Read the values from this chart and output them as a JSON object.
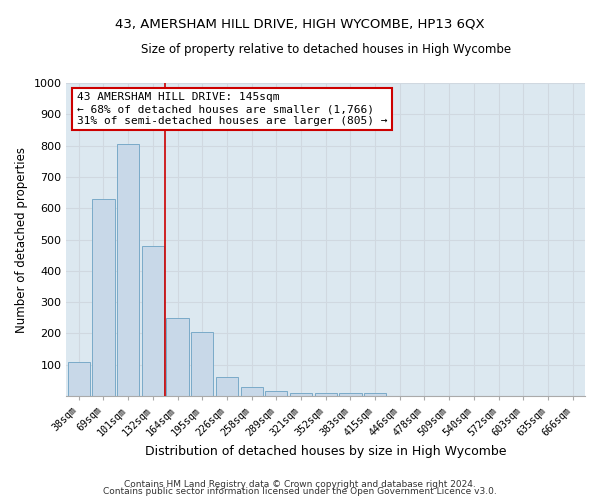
{
  "title1": "43, AMERSHAM HILL DRIVE, HIGH WYCOMBE, HP13 6QX",
  "title2": "Size of property relative to detached houses in High Wycombe",
  "xlabel": "Distribution of detached houses by size in High Wycombe",
  "ylabel": "Number of detached properties",
  "bar_labels": [
    "38sqm",
    "69sqm",
    "101sqm",
    "132sqm",
    "164sqm",
    "195sqm",
    "226sqm",
    "258sqm",
    "289sqm",
    "321sqm",
    "352sqm",
    "383sqm",
    "415sqm",
    "446sqm",
    "478sqm",
    "509sqm",
    "540sqm",
    "572sqm",
    "603sqm",
    "635sqm",
    "666sqm"
  ],
  "bar_heights": [
    110,
    630,
    805,
    480,
    250,
    205,
    62,
    28,
    17,
    10,
    10,
    10,
    10,
    0,
    0,
    0,
    0,
    0,
    0,
    0,
    0
  ],
  "bar_color": "#c8d8e8",
  "bar_edgecolor": "#7aaac8",
  "grid_color": "#d0d8e0",
  "bg_color": "#dce8f0",
  "red_line_x": 3.5,
  "annotation_text": "43 AMERSHAM HILL DRIVE: 145sqm\n← 68% of detached houses are smaller (1,766)\n31% of semi-detached houses are larger (805) →",
  "annotation_box_facecolor": "#ffffff",
  "annotation_box_edgecolor": "#cc0000",
  "footnote1": "Contains HM Land Registry data © Crown copyright and database right 2024.",
  "footnote2": "Contains public sector information licensed under the Open Government Licence v3.0.",
  "ylim": [
    0,
    1000
  ],
  "yticks": [
    0,
    100,
    200,
    300,
    400,
    500,
    600,
    700,
    800,
    900,
    1000
  ]
}
